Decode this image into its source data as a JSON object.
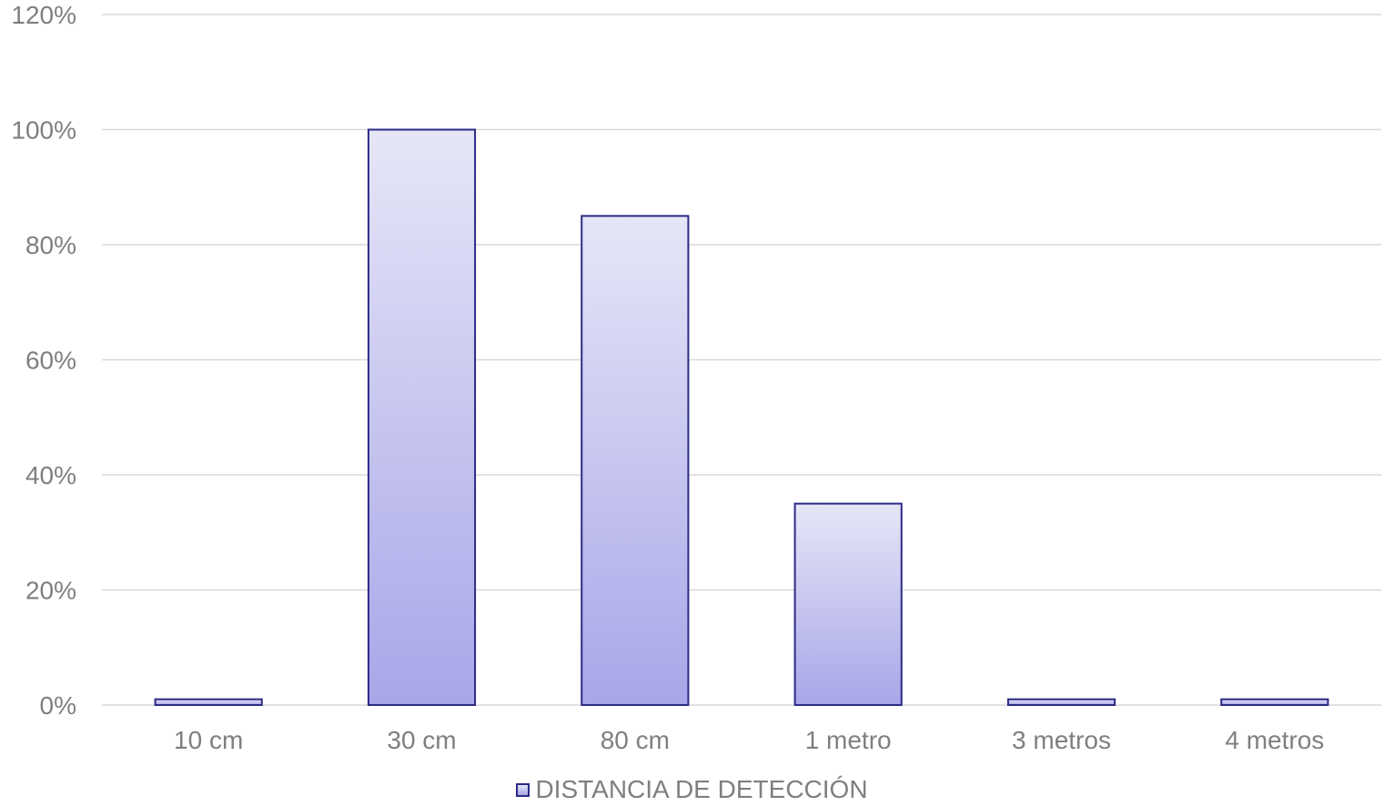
{
  "chart_data": {
    "type": "bar",
    "categories": [
      "10 cm",
      "30 cm",
      "80 cm",
      "1 metro",
      "3 metros",
      "4 metros"
    ],
    "series": [
      {
        "name": "DISTANCIA DE DETECCIÓN",
        "values": [
          1,
          100,
          85,
          35,
          1,
          1
        ]
      }
    ],
    "ylim": [
      0,
      120
    ],
    "yticks": [
      "0%",
      "20%",
      "40%",
      "60%",
      "80%",
      "100%",
      "120%"
    ],
    "ytick_values": [
      0,
      20,
      40,
      60,
      80,
      100,
      120
    ],
    "grid": true,
    "legend_position": "bottom",
    "colors": {
      "bar_top": "#e6e6f7",
      "bar_bottom": "#a8a6e8",
      "bar_border": "#2b2a86",
      "grid": "#d9d9d9",
      "text": "#7f7f7f"
    }
  }
}
